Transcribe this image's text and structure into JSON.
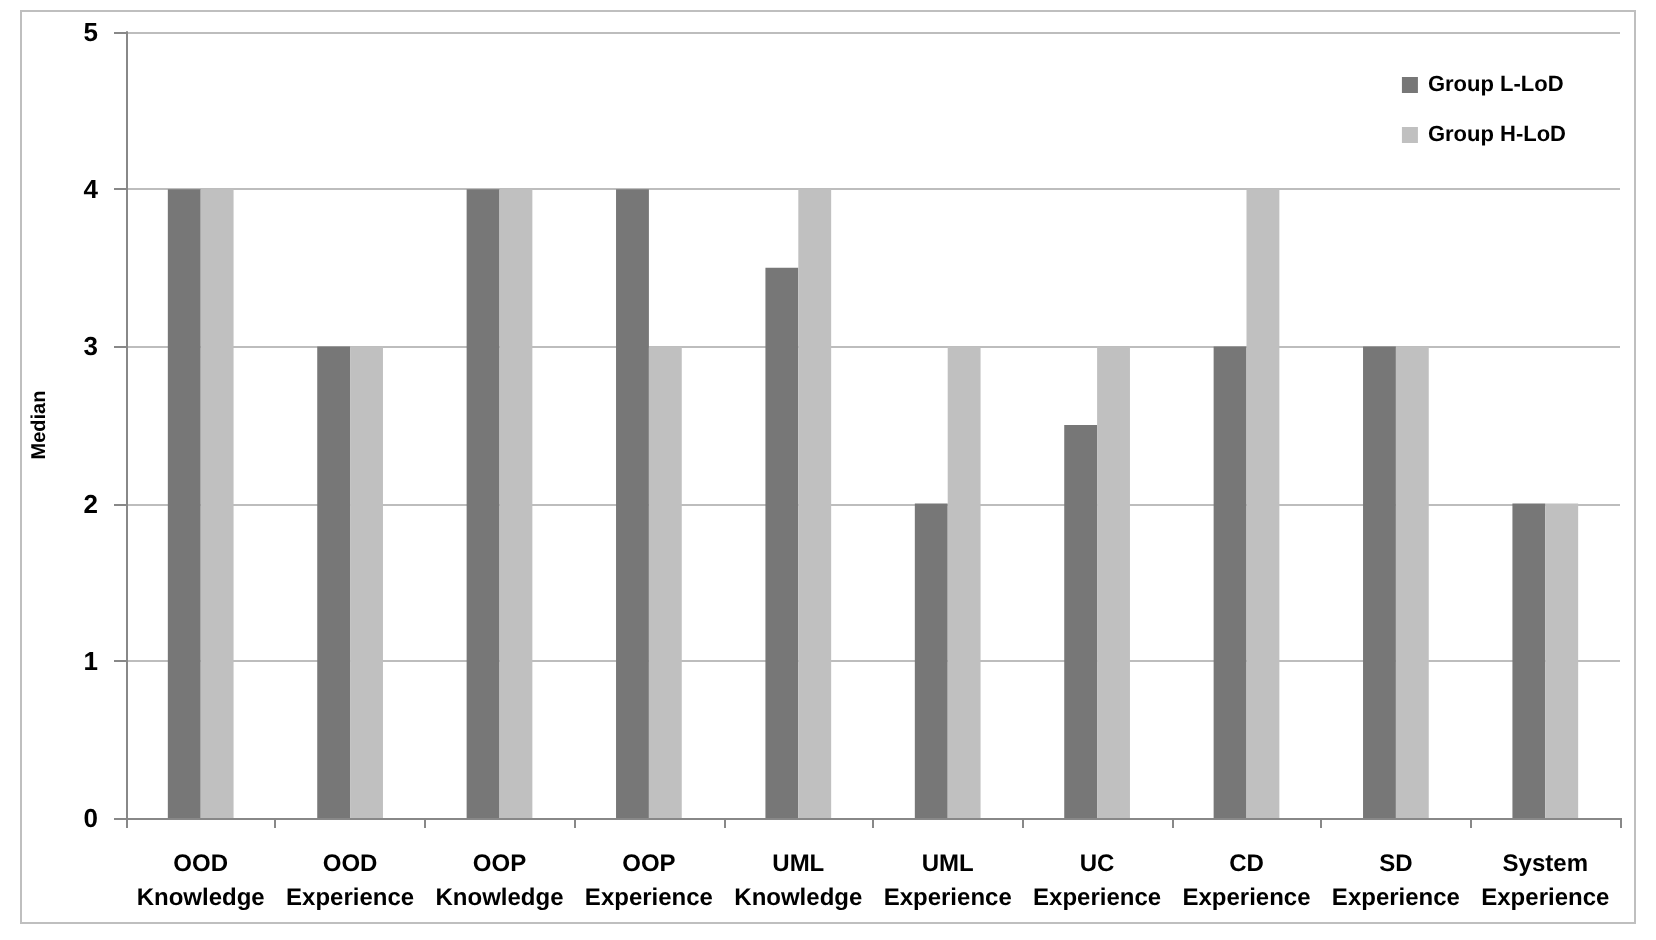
{
  "chart_data": {
    "type": "bar",
    "ylabel": "Median",
    "categories": [
      "OOD Knowledge",
      "OOD Experience",
      "OOP Knowledge",
      "OOP Experience",
      "UML Knowledge",
      "UML Experience",
      "UC Experience",
      "CD Experience",
      "SD Experience",
      "System Experience"
    ],
    "series": [
      {
        "name": "Group L-LoD",
        "color": "#777777",
        "values": [
          4,
          3,
          4,
          4,
          3.5,
          2,
          2.5,
          3,
          3,
          2
        ]
      },
      {
        "name": "Group H-LoD",
        "color": "#c0c0c0",
        "values": [
          4,
          3,
          4,
          3,
          4,
          3,
          3,
          4,
          3,
          2
        ]
      }
    ],
    "ylim": [
      0,
      5
    ],
    "yticks": [
      0,
      1,
      2,
      3,
      4,
      5
    ],
    "grid": "y",
    "legend": "top right"
  }
}
